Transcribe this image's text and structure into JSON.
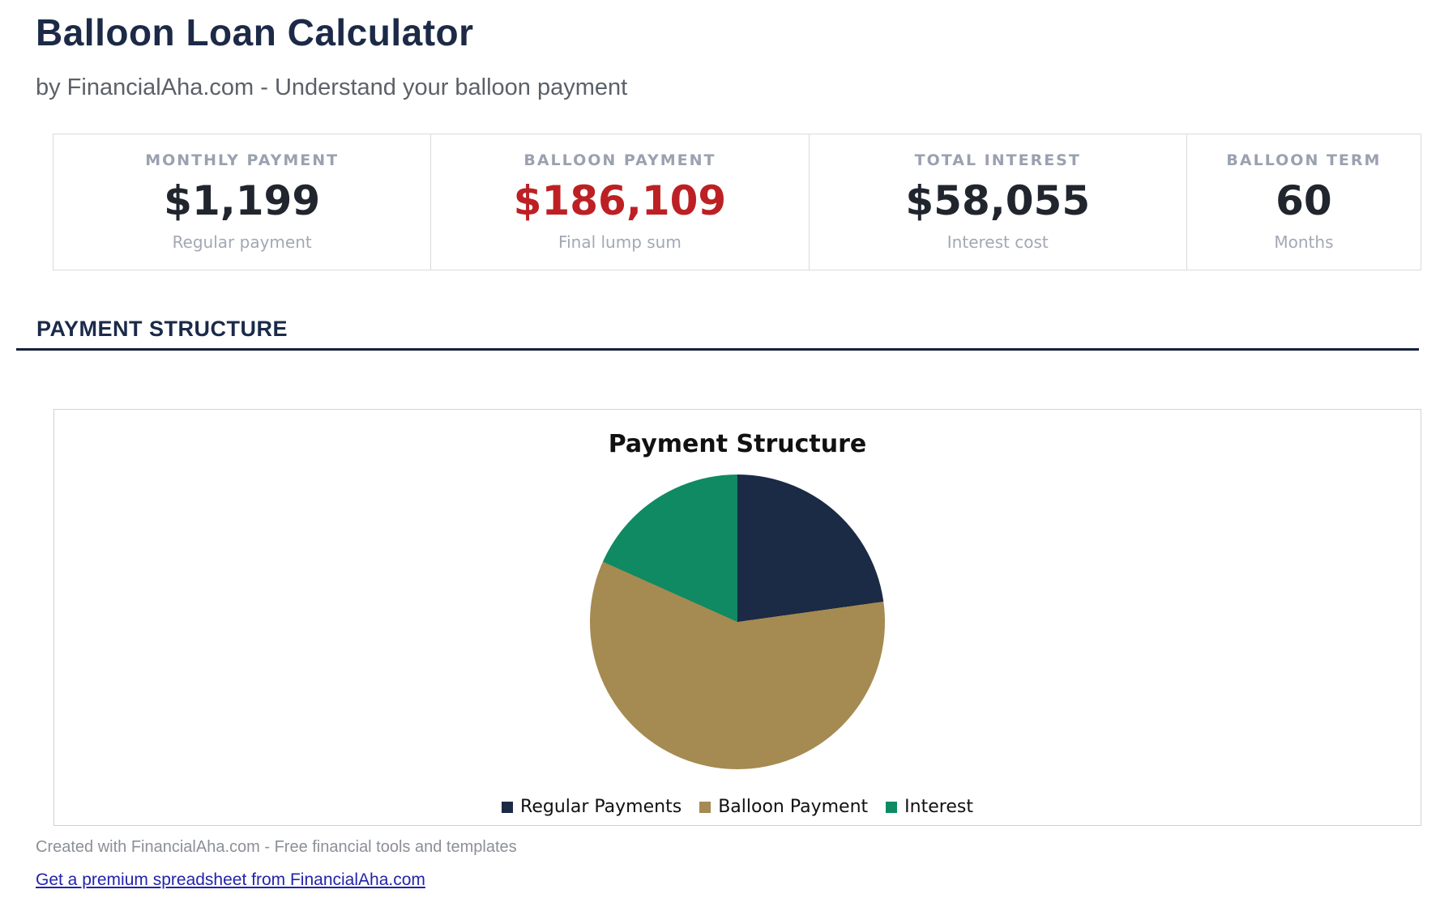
{
  "header": {
    "title": "Balloon Loan Calculator",
    "subtitle": "by FinancialAha.com - Understand your balloon payment"
  },
  "stats": {
    "cards": [
      {
        "label": "MONTHLY PAYMENT",
        "value": "$1,199",
        "sub": "Regular payment",
        "value_color": "#21252e"
      },
      {
        "label": "BALLOON PAYMENT",
        "value": "$186,109",
        "sub": "Final lump sum",
        "value_color": "#bd2024"
      },
      {
        "label": "TOTAL INTEREST",
        "value": "$58,055",
        "sub": "Interest cost",
        "value_color": "#21252e"
      },
      {
        "label": "BALLOON TERM",
        "value": "60",
        "sub": "Months",
        "value_color": "#21252e"
      }
    ]
  },
  "section": {
    "title": "PAYMENT STRUCTURE"
  },
  "chart_data": {
    "type": "pie",
    "title": "Payment Structure",
    "slices": [
      {
        "label": "Regular Payments",
        "value_usd": 71940,
        "pct": 22.8,
        "color": "#1b2a45"
      },
      {
        "label": "Balloon Payment",
        "value_usd": 186109,
        "pct": 58.9,
        "color": "#a58a52"
      },
      {
        "label": "Interest",
        "value_usd": 58055,
        "pct": 18.3,
        "color": "#0f8a62"
      }
    ],
    "start_angle_deg": 0,
    "direction": "clockwise",
    "legend_position": "bottom"
  },
  "footer": {
    "credit": "Created with FinancialAha.com - Free financial tools and templates",
    "link_text": "Get a premium spreadsheet from FinancialAha.com"
  },
  "colors": {
    "title_navy": "#1c2a47",
    "subtitle_gray": "#5c6168",
    "muted_label_gray": "#9aa1af",
    "value_dark": "#21252e",
    "balloon_red": "#bd2024",
    "divider_navy": "#16223a",
    "card_border_gray": "#d9dbdd",
    "panel_border_gray": "#d2d2d2",
    "footer_gray": "#8b9097",
    "link_blue": "#2323aa",
    "pie_navy": "#1b2a45",
    "pie_tan": "#a58a52",
    "pie_green": "#0f8a62"
  }
}
